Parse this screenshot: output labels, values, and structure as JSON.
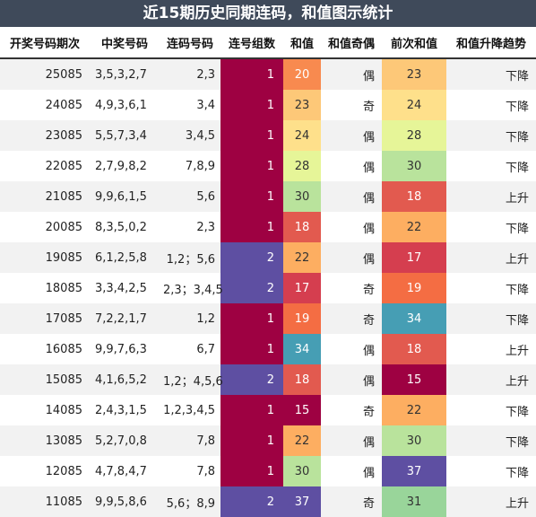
{
  "title": "近15期历史同期连码，和值图示统计",
  "headers": [
    "开奖号码期次",
    "中奖号码",
    "连码号码",
    "连号组数",
    "和值",
    "和值奇偶",
    "前次和值",
    "和值升降趋势"
  ],
  "colors": {
    "groups_1": "#9e0142",
    "groups_2": "#5e4fa2",
    "sum_15": "#9e0142",
    "sum_17": "#d53e4f",
    "sum_18": "#e25a4f",
    "sum_19": "#f46d43",
    "sum_20": "#f88a4f",
    "sum_22": "#fdae61",
    "sum_23": "#fdc878",
    "sum_24": "#fee08b",
    "sum_28": "#e6f598",
    "sum_30": "#b9e39c",
    "sum_31": "#99d59a",
    "sum_34": "#469eb4",
    "sum_37": "#5e4fa2"
  },
  "rows": [
    {
      "period": "25085",
      "numbers": "3,5,3,2,7",
      "consecutive": "2,3",
      "groups": "1",
      "sum": "20",
      "parity": "偶",
      "prev_sum": "23",
      "trend": "下降"
    },
    {
      "period": "24085",
      "numbers": "4,9,3,6,1",
      "consecutive": "3,4",
      "groups": "1",
      "sum": "23",
      "parity": "奇",
      "prev_sum": "24",
      "trend": "下降"
    },
    {
      "period": "23085",
      "numbers": "5,5,7,3,4",
      "consecutive": "3,4,5",
      "groups": "1",
      "sum": "24",
      "parity": "偶",
      "prev_sum": "28",
      "trend": "下降"
    },
    {
      "period": "22085",
      "numbers": "2,7,9,8,2",
      "consecutive": "7,8,9",
      "groups": "1",
      "sum": "28",
      "parity": "偶",
      "prev_sum": "30",
      "trend": "下降"
    },
    {
      "period": "21085",
      "numbers": "9,9,6,1,5",
      "consecutive": "5,6",
      "groups": "1",
      "sum": "30",
      "parity": "偶",
      "prev_sum": "18",
      "trend": "上升"
    },
    {
      "period": "20085",
      "numbers": "8,3,5,0,2",
      "consecutive": "2,3",
      "groups": "1",
      "sum": "18",
      "parity": "偶",
      "prev_sum": "22",
      "trend": "下降"
    },
    {
      "period": "19085",
      "numbers": "6,1,2,5,8",
      "consecutive": "1,2；5,6",
      "groups": "2",
      "sum": "22",
      "parity": "偶",
      "prev_sum": "17",
      "trend": "上升"
    },
    {
      "period": "18085",
      "numbers": "3,3,4,2,5",
      "consecutive": "2,3；3,4,5",
      "groups": "2",
      "sum": "17",
      "parity": "奇",
      "prev_sum": "19",
      "trend": "下降"
    },
    {
      "period": "17085",
      "numbers": "7,2,2,1,7",
      "consecutive": "1,2",
      "groups": "1",
      "sum": "19",
      "parity": "奇",
      "prev_sum": "34",
      "trend": "下降"
    },
    {
      "period": "16085",
      "numbers": "9,9,7,6,3",
      "consecutive": "6,7",
      "groups": "1",
      "sum": "34",
      "parity": "偶",
      "prev_sum": "18",
      "trend": "上升"
    },
    {
      "period": "15085",
      "numbers": "4,1,6,5,2",
      "consecutive": "1,2；4,5,6",
      "groups": "2",
      "sum": "18",
      "parity": "偶",
      "prev_sum": "15",
      "trend": "上升"
    },
    {
      "period": "14085",
      "numbers": "2,4,3,1,5",
      "consecutive": "1,2,3,4,5",
      "groups": "1",
      "sum": "15",
      "parity": "奇",
      "prev_sum": "22",
      "trend": "下降"
    },
    {
      "period": "13085",
      "numbers": "5,2,7,0,8",
      "consecutive": "7,8",
      "groups": "1",
      "sum": "22",
      "parity": "偶",
      "prev_sum": "30",
      "trend": "下降"
    },
    {
      "period": "12085",
      "numbers": "4,7,8,4,7",
      "consecutive": "7,8",
      "groups": "1",
      "sum": "30",
      "parity": "偶",
      "prev_sum": "37",
      "trend": "下降"
    },
    {
      "period": "11085",
      "numbers": "9,9,5,8,6",
      "consecutive": "5,6；8,9",
      "groups": "2",
      "sum": "37",
      "parity": "奇",
      "prev_sum": "31",
      "trend": "上升"
    }
  ]
}
